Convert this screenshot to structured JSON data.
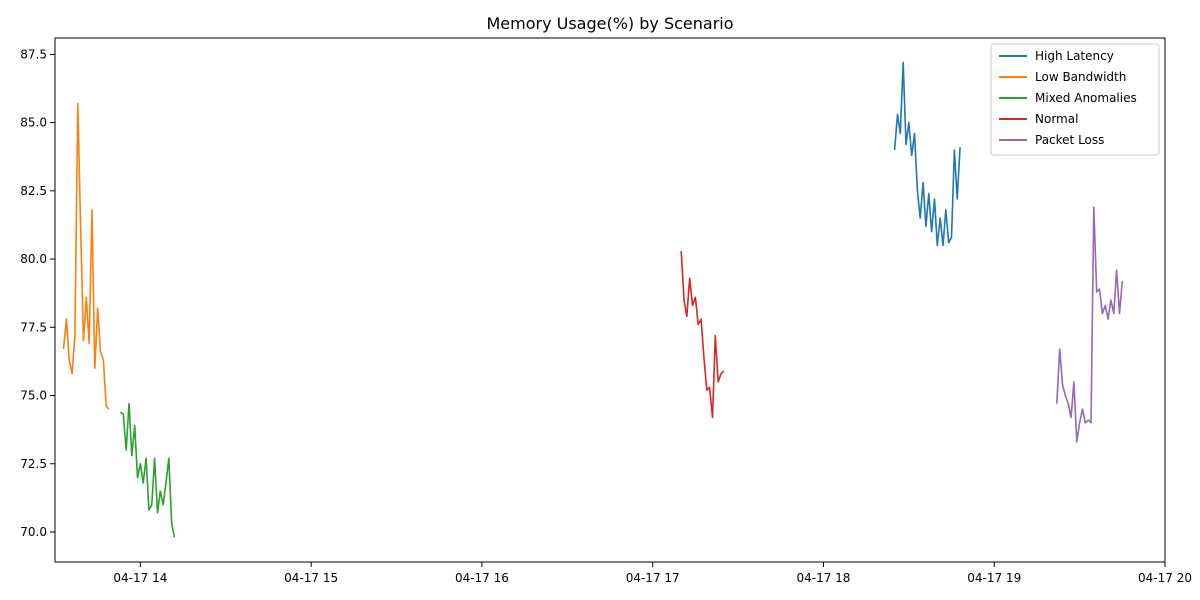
{
  "chart_data": {
    "type": "line",
    "title": "Memory Usage(%) by Scenario",
    "xlabel": "",
    "ylabel": "",
    "x_axis": {
      "type": "time",
      "range": [
        "04-17 13:30",
        "04-17 20:00"
      ],
      "ticks": [
        "04-17 14:00",
        "04-17 15:00",
        "04-17 16:00",
        "04-17 17:00",
        "04-17 18:00",
        "04-17 19:00",
        "04-17 20:00"
      ],
      "tick_labels": [
        "04-17 14",
        "04-17 15",
        "04-17 16",
        "04-17 17",
        "04-17 18",
        "04-17 19",
        "04-17 20"
      ]
    },
    "y_axis": {
      "range": [
        68.9,
        88.1
      ],
      "ticks": [
        70.0,
        72.5,
        75.0,
        77.5,
        80.0,
        82.5,
        85.0,
        87.5
      ],
      "tick_labels": [
        "70.0",
        "72.5",
        "75.0",
        "77.5",
        "80.0",
        "82.5",
        "85.0",
        "87.5"
      ]
    },
    "grid": false,
    "legend": "top-right",
    "series": [
      {
        "name": "High Latency",
        "color": "#1f77b4",
        "x": [
          "04-17 18:25",
          "04-17 18:26",
          "04-17 18:27",
          "04-17 18:28",
          "04-17 18:29",
          "04-17 18:30",
          "04-17 18:31",
          "04-17 18:32",
          "04-17 18:33",
          "04-17 18:34",
          "04-17 18:35",
          "04-17 18:36",
          "04-17 18:37",
          "04-17 18:38",
          "04-17 18:39",
          "04-17 18:40",
          "04-17 18:41",
          "04-17 18:42",
          "04-17 18:43",
          "04-17 18:44",
          "04-17 18:45",
          "04-17 18:46",
          "04-17 18:47",
          "04-17 18:48"
        ],
        "y": [
          84.0,
          85.3,
          84.6,
          87.2,
          84.2,
          85.0,
          83.8,
          84.6,
          82.5,
          81.5,
          82.8,
          81.2,
          82.4,
          81.0,
          82.2,
          80.5,
          81.5,
          80.5,
          81.8,
          80.6,
          80.8,
          84.0,
          82.2,
          84.1
        ]
      },
      {
        "name": "Low Bandwidth",
        "color": "#ff7f0e",
        "x": [
          "04-17 13:33",
          "04-17 13:34",
          "04-17 13:35",
          "04-17 13:36",
          "04-17 13:37",
          "04-17 13:38",
          "04-17 13:39",
          "04-17 13:40",
          "04-17 13:41",
          "04-17 13:42",
          "04-17 13:43",
          "04-17 13:44",
          "04-17 13:45",
          "04-17 13:46",
          "04-17 13:47",
          "04-17 13:48",
          "04-17 13:49"
        ],
        "y": [
          76.7,
          77.8,
          76.3,
          75.8,
          77.2,
          85.7,
          81.2,
          77.0,
          78.6,
          76.9,
          81.8,
          76.0,
          78.2,
          76.6,
          76.3,
          74.6,
          74.5
        ]
      },
      {
        "name": "Mixed Anomalies",
        "color": "#2ca02c",
        "x": [
          "04-17 13:53",
          "04-17 13:54",
          "04-17 13:55",
          "04-17 13:56",
          "04-17 13:57",
          "04-17 13:58",
          "04-17 13:59",
          "04-17 14:00",
          "04-17 14:01",
          "04-17 14:02",
          "04-17 14:03",
          "04-17 14:04",
          "04-17 14:05",
          "04-17 14:06",
          "04-17 14:07",
          "04-17 14:08",
          "04-17 14:09",
          "04-17 14:10",
          "04-17 14:11",
          "04-17 14:12"
        ],
        "y": [
          74.4,
          74.3,
          73.0,
          74.7,
          72.8,
          73.9,
          72.0,
          72.5,
          71.8,
          72.7,
          70.8,
          71.0,
          72.7,
          70.7,
          71.5,
          71.0,
          71.8,
          72.7,
          70.3,
          69.8
        ]
      },
      {
        "name": "Normal",
        "color": "#d62728",
        "x": [
          "04-17 17:10",
          "04-17 17:11",
          "04-17 17:12",
          "04-17 17:13",
          "04-17 17:14",
          "04-17 17:15",
          "04-17 17:16",
          "04-17 17:17",
          "04-17 17:18",
          "04-17 17:19",
          "04-17 17:20",
          "04-17 17:21",
          "04-17 17:22",
          "04-17 17:23",
          "04-17 17:24",
          "04-17 17:25"
        ],
        "y": [
          80.3,
          78.5,
          77.9,
          79.3,
          78.3,
          78.6,
          77.6,
          77.8,
          76.4,
          75.2,
          75.3,
          74.2,
          77.2,
          75.5,
          75.8,
          75.9
        ]
      },
      {
        "name": "Packet Loss",
        "color": "#9467bd",
        "x": [
          "04-17 19:22",
          "04-17 19:23",
          "04-17 19:24",
          "04-17 19:25",
          "04-17 19:26",
          "04-17 19:27",
          "04-17 19:28",
          "04-17 19:29",
          "04-17 19:30",
          "04-17 19:31",
          "04-17 19:32",
          "04-17 19:33",
          "04-17 19:34",
          "04-17 19:35",
          "04-17 19:36",
          "04-17 19:37",
          "04-17 19:38",
          "04-17 19:39",
          "04-17 19:40",
          "04-17 19:41",
          "04-17 19:42",
          "04-17 19:43",
          "04-17 19:44",
          "04-17 19:45"
        ],
        "y": [
          74.7,
          76.7,
          75.4,
          75.0,
          74.7,
          74.2,
          75.5,
          73.3,
          74.0,
          74.5,
          74.0,
          74.1,
          74.0,
          81.9,
          78.8,
          78.9,
          78.0,
          78.3,
          77.8,
          78.5,
          78.0,
          79.6,
          78.0,
          79.2
        ]
      }
    ]
  }
}
